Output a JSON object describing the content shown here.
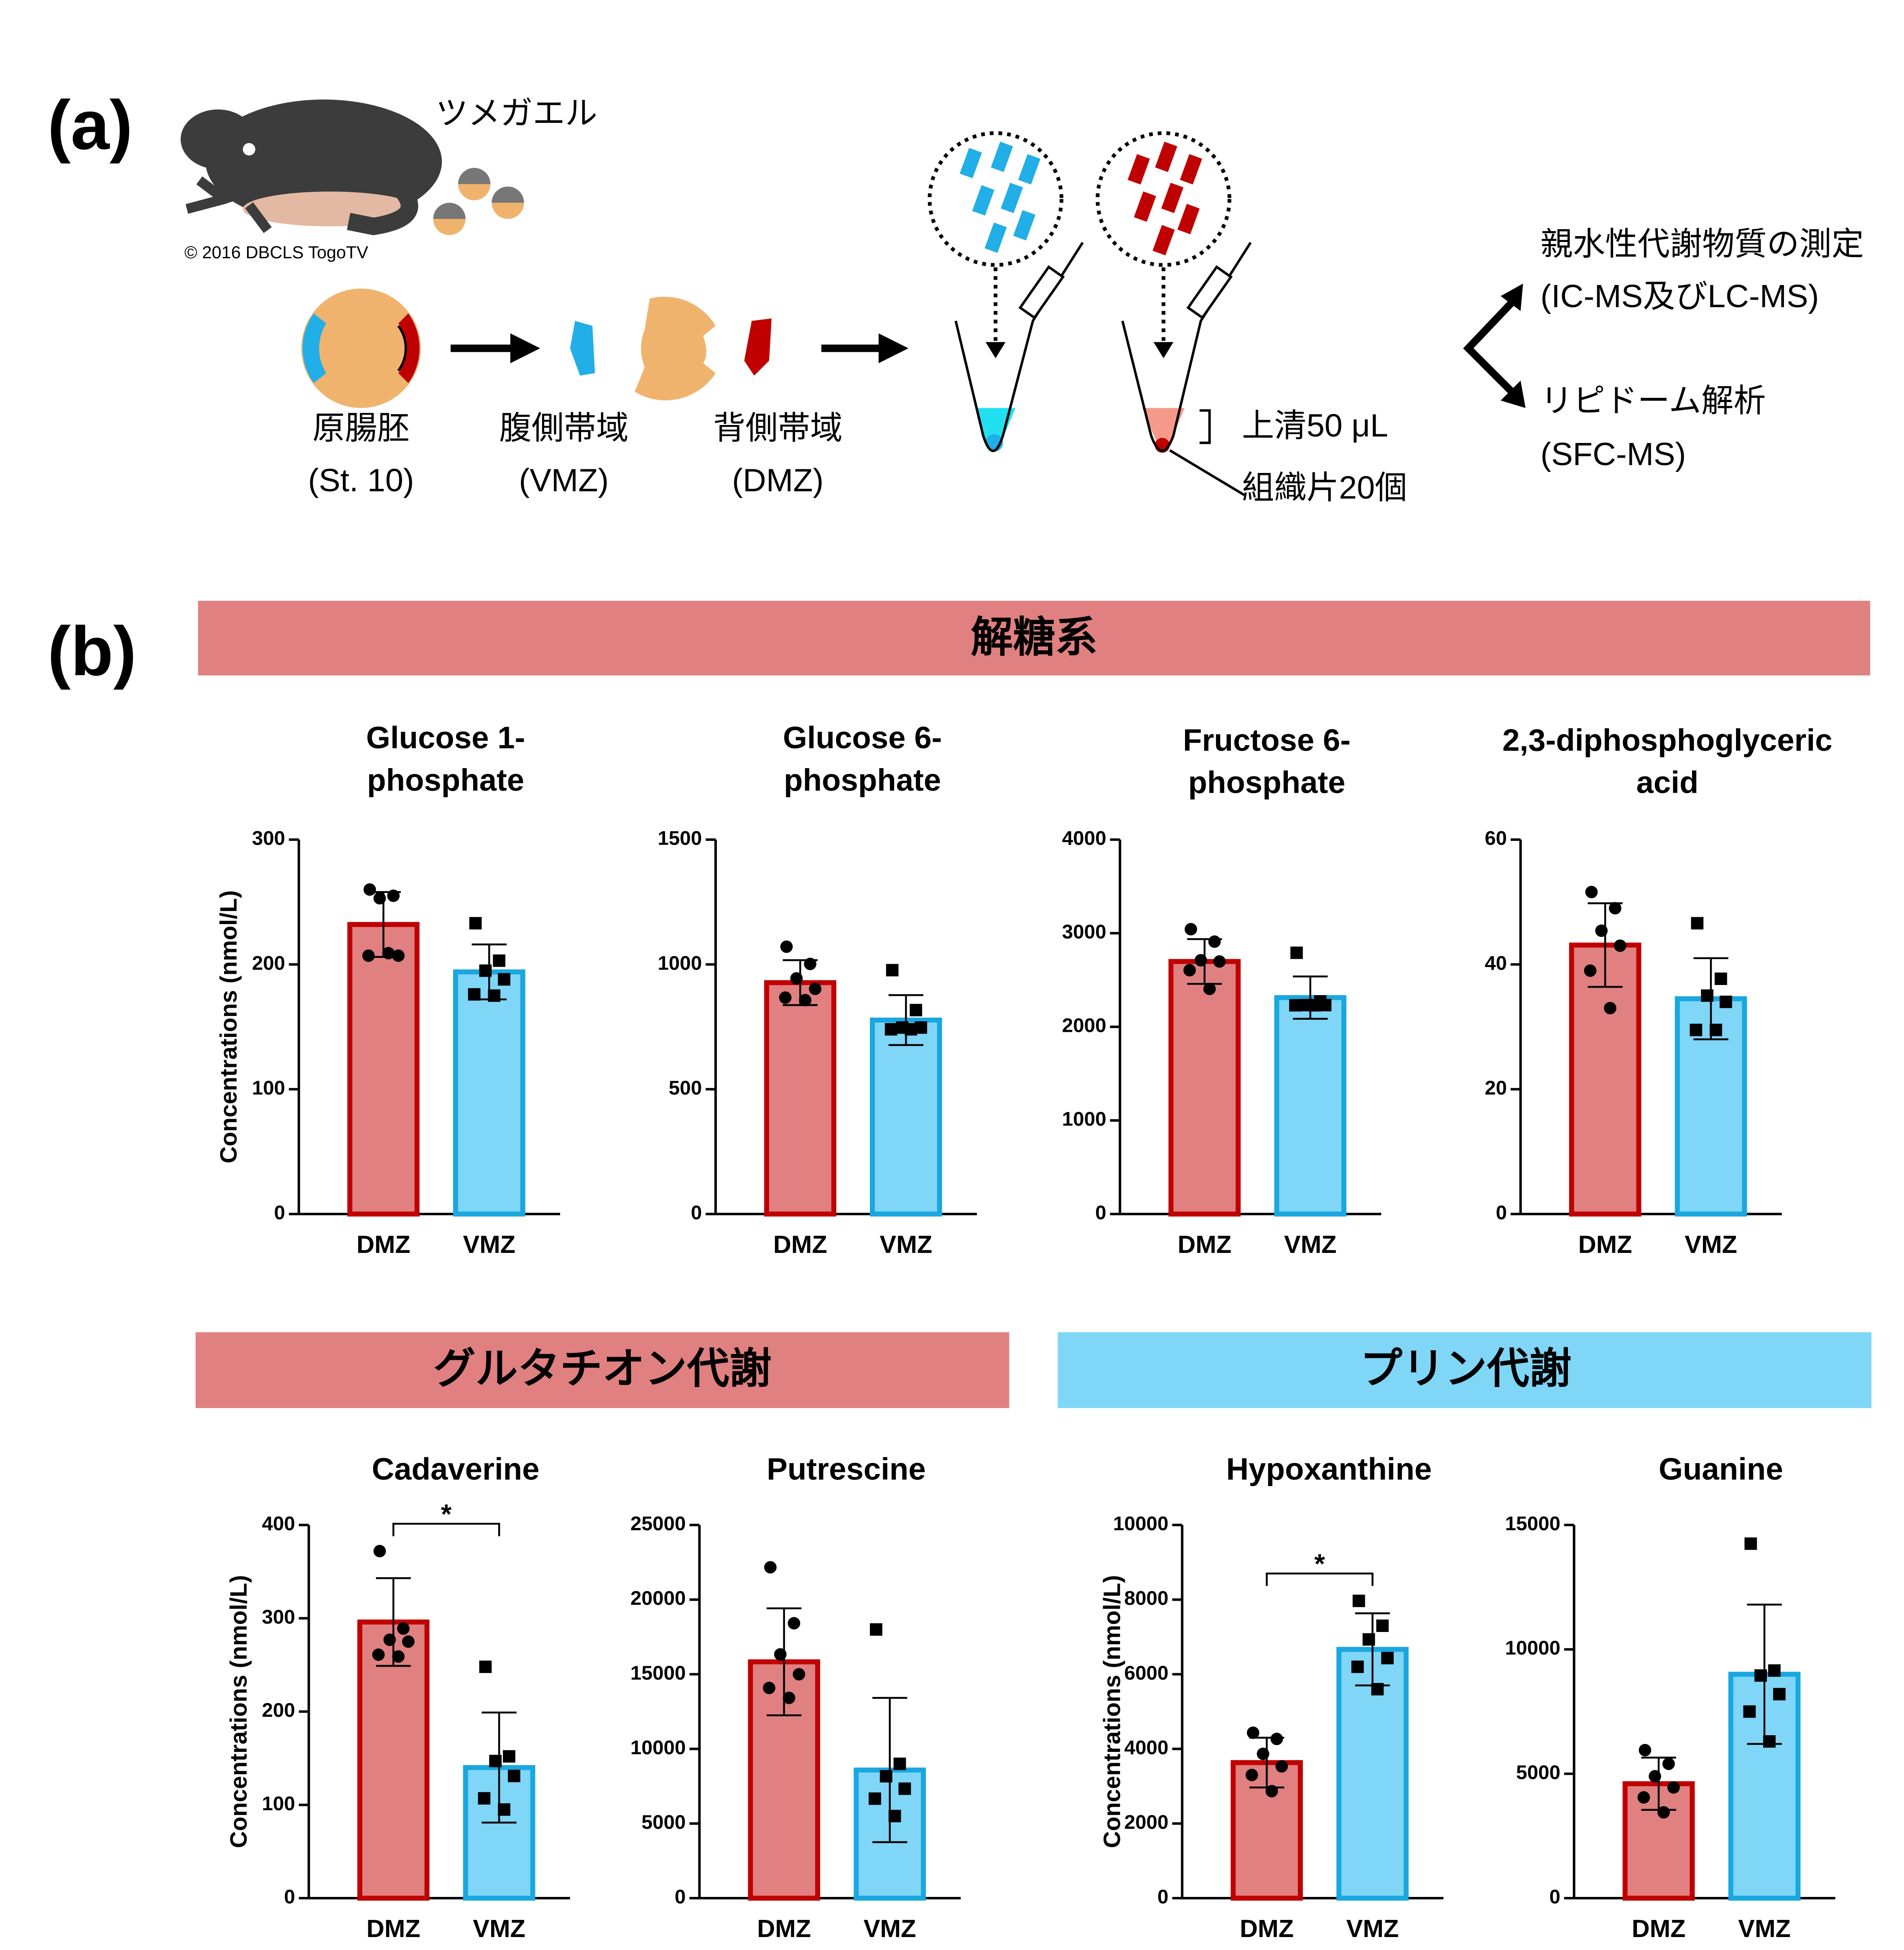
{
  "panel_a": {
    "label": "(a)",
    "frog_name": "ツメガエル",
    "credit": "© 2016 DBCLS TogoTV",
    "steps": [
      {
        "name": "原腸胚",
        "sub": "(St. 10)"
      },
      {
        "name": "腹側帯域",
        "sub": "(VMZ)"
      },
      {
        "name": "背側帯域",
        "sub": "(DMZ)"
      }
    ],
    "supernatant": "上清50 μL",
    "tissue": "組織片20個",
    "outputs": [
      {
        "name": "親水性代謝物質の測定",
        "sub": "(IC-MS及びLC-MS)"
      },
      {
        "name": "リピドーム解析",
        "sub": "(SFC-MS)"
      }
    ]
  },
  "panel_b": {
    "label": "(b)",
    "sections": [
      "解糖系",
      "グルタチオン代謝",
      "プリン代謝"
    ]
  },
  "chart_data": [
    {
      "type": "bar",
      "title": [
        "Glucose 1-",
        "phosphate"
      ],
      "ylabel": "Concentrations (nmol/L)",
      "categories": [
        "DMZ",
        "VMZ"
      ],
      "values": [
        232,
        194
      ],
      "errors": [
        26,
        22
      ],
      "points": [
        [
          260,
          255,
          253,
          207,
          207,
          209
        ],
        [
          233,
          203,
          195,
          188,
          176,
          175
        ]
      ],
      "colors": [
        "#e08080",
        "#7fd6f7"
      ],
      "edge_colors": [
        "#c00000",
        "#1aa7e0"
      ],
      "markers": [
        "circle",
        "square"
      ],
      "ylim": [
        0,
        300
      ],
      "yticks": [
        0,
        100,
        200,
        300
      ]
    },
    {
      "type": "bar",
      "title": [
        "Glucose 6-",
        "phosphate"
      ],
      "categories": [
        "DMZ",
        "VMZ"
      ],
      "values": [
        927,
        777
      ],
      "errors": [
        90,
        100
      ],
      "points": [
        [
          1071,
          1002,
          944,
          902,
          867,
          857
        ],
        [
          977,
          817,
          747,
          747,
          740,
          740
        ]
      ],
      "colors": [
        "#e08080",
        "#7fd6f7"
      ],
      "edge_colors": [
        "#c00000",
        "#1aa7e0"
      ],
      "markers": [
        "circle",
        "square"
      ],
      "ylim": [
        0,
        1500
      ],
      "yticks": [
        0,
        500,
        1000,
        1500
      ]
    },
    {
      "type": "bar",
      "title": [
        "Fructose 6-",
        "phosphate"
      ],
      "categories": [
        "DMZ",
        "VMZ"
      ],
      "values": [
        2698,
        2312
      ],
      "errors": [
        239,
        226
      ],
      "points": [
        [
          3043,
          2910,
          2711,
          2698,
          2605,
          2405
        ],
        [
          2791,
          2272,
          2232,
          2232,
          2230,
          2230
        ]
      ],
      "colors": [
        "#e08080",
        "#7fd6f7"
      ],
      "edge_colors": [
        "#c00000",
        "#1aa7e0"
      ],
      "markers": [
        "circle",
        "square"
      ],
      "ylim": [
        0,
        4000
      ],
      "yticks": [
        0,
        1000,
        2000,
        3000,
        4000
      ]
    },
    {
      "type": "bar",
      "title": [
        "2,3-diphosphoglyceric",
        "acid"
      ],
      "categories": [
        "DMZ",
        "VMZ"
      ],
      "values": [
        43.1,
        34.5
      ],
      "errors": [
        6.7,
        6.5
      ],
      "points": [
        [
          51.6,
          49,
          45.4,
          43,
          39,
          33
        ],
        [
          46.6,
          37.7,
          35,
          34,
          29.5,
          29.5
        ]
      ],
      "colors": [
        "#e08080",
        "#7fd6f7"
      ],
      "edge_colors": [
        "#c00000",
        "#1aa7e0"
      ],
      "markers": [
        "circle",
        "square"
      ],
      "ylim": [
        0,
        60
      ],
      "yticks": [
        0,
        20,
        40,
        60
      ]
    },
    {
      "type": "bar",
      "title": [
        "Cadaverine"
      ],
      "ylabel": "Concentrations (nmol/L)",
      "significance": "*",
      "categories": [
        "DMZ",
        "VMZ"
      ],
      "values": [
        296,
        140
      ],
      "errors": [
        47,
        59
      ],
      "points": [
        [
          372,
          289,
          277,
          275,
          261,
          259
        ],
        [
          248,
          152,
          147,
          131,
          107,
          95
        ]
      ],
      "colors": [
        "#e08080",
        "#7fd6f7"
      ],
      "edge_colors": [
        "#c00000",
        "#1aa7e0"
      ],
      "markers": [
        "circle",
        "square"
      ],
      "ylim": [
        0,
        400
      ],
      "yticks": [
        0,
        100,
        200,
        300,
        400
      ]
    },
    {
      "type": "bar",
      "title": [
        "Putrescine"
      ],
      "categories": [
        "DMZ",
        "VMZ"
      ],
      "values": [
        15833,
        8583
      ],
      "errors": [
        3584,
        4834
      ],
      "points": [
        [
          22167,
          18417,
          16333,
          15000,
          14083,
          13417
        ],
        [
          18000,
          9000,
          8167,
          7333,
          6667,
          5500
        ]
      ],
      "colors": [
        "#e08080",
        "#7fd6f7"
      ],
      "edge_colors": [
        "#c00000",
        "#1aa7e0"
      ],
      "markers": [
        "circle",
        "square"
      ],
      "ylim": [
        0,
        25000
      ],
      "yticks": [
        0,
        5000,
        10000,
        15000,
        20000,
        25000
      ]
    },
    {
      "type": "bar",
      "title": [
        "Hypoxanthine"
      ],
      "ylabel": "Concentrations (nmol/L)",
      "significance": "*",
      "categories": [
        "DMZ",
        "VMZ"
      ],
      "values": [
        3633,
        6667
      ],
      "errors": [
        667,
        966
      ],
      "points": [
        [
          4433,
          4267,
          3867,
          3533,
          3300,
          2867
        ],
        [
          7967,
          7300,
          6933,
          6433,
          6200,
          5600
        ]
      ],
      "colors": [
        "#e08080",
        "#7fd6f7"
      ],
      "edge_colors": [
        "#c00000",
        "#1aa7e0"
      ],
      "markers": [
        "circle",
        "square"
      ],
      "ylim": [
        0,
        10000
      ],
      "yticks": [
        0,
        2000,
        4000,
        6000,
        8000,
        10000
      ]
    },
    {
      "type": "bar",
      "title": [
        "Guanine"
      ],
      "categories": [
        "DMZ",
        "VMZ"
      ],
      "values": [
        4600,
        9000
      ],
      "errors": [
        1050,
        2800
      ],
      "points": [
        [
          5950,
          5400,
          4900,
          4450,
          4050,
          3450
        ],
        [
          14250,
          9150,
          8950,
          8200,
          7500,
          6300
        ]
      ],
      "colors": [
        "#e08080",
        "#7fd6f7"
      ],
      "edge_colors": [
        "#c00000",
        "#1aa7e0"
      ],
      "markers": [
        "circle",
        "square"
      ],
      "ylim": [
        0,
        15000
      ],
      "yticks": [
        0,
        5000,
        10000,
        15000
      ]
    }
  ]
}
